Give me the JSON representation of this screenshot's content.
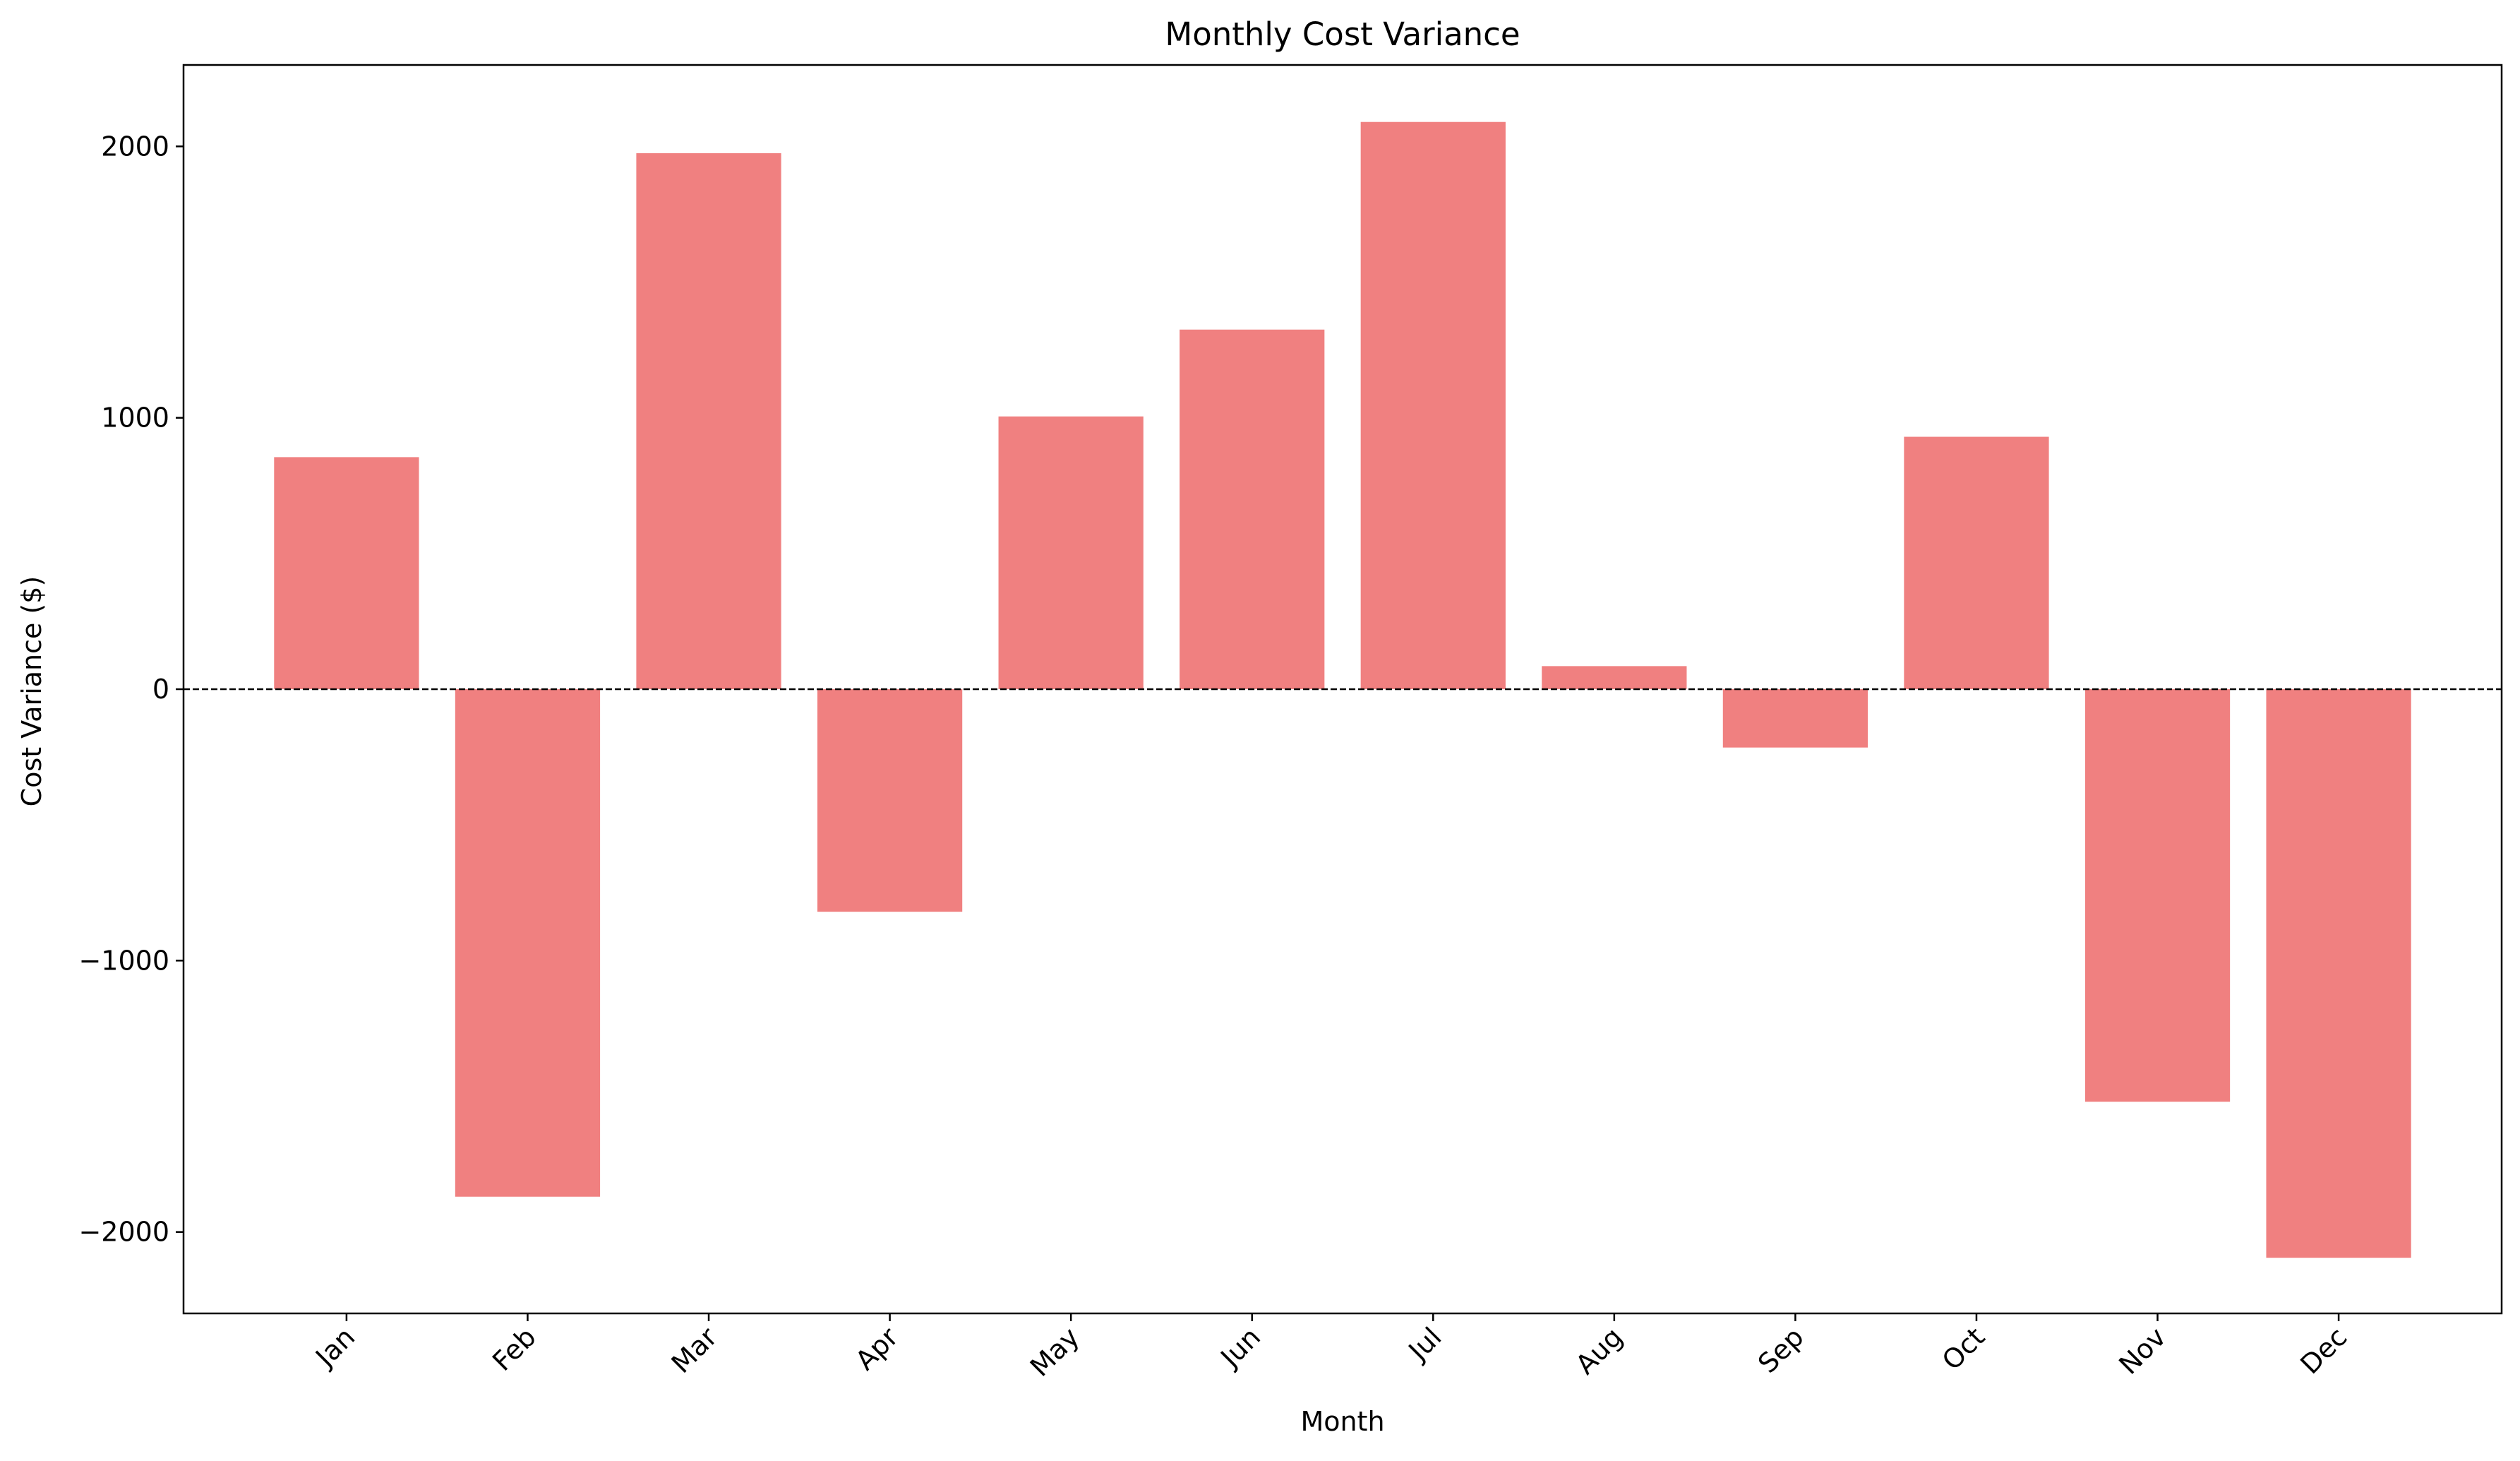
{
  "chart_data": {
    "type": "bar",
    "title": "Monthly Cost Variance",
    "xlabel": "Month",
    "ylabel": "Cost Variance ($)",
    "categories": [
      "Jan",
      "Feb",
      "Mar",
      "Apr",
      "May",
      "Jun",
      "Jul",
      "Aug",
      "Sep",
      "Oct",
      "Nov",
      "Dec"
    ],
    "values": [
      855,
      -1870,
      1975,
      -820,
      1005,
      1325,
      2090,
      85,
      -215,
      930,
      -1520,
      -2095
    ],
    "ylim": [
      -2300,
      2300
    ],
    "yticks": [
      -2000,
      -1000,
      0,
      1000,
      2000
    ],
    "ytick_labels": [
      "−2000",
      "−1000",
      "0",
      "1000",
      "2000"
    ],
    "bar_color": "#f08080",
    "zero_line": {
      "value": 0,
      "style": "dashed",
      "color": "#000000"
    },
    "grid": false,
    "legend": "none",
    "xtick_rotation_deg": 45
  }
}
